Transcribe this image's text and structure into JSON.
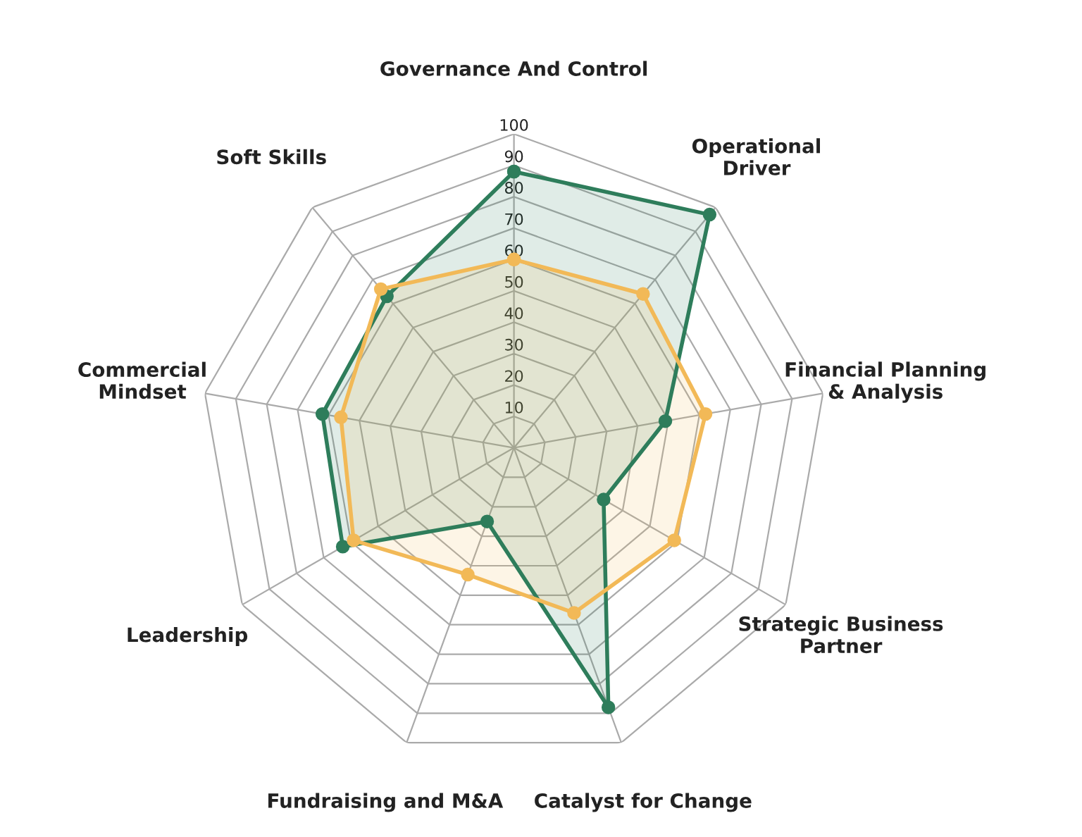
{
  "chart_data": {
    "type": "radar",
    "categories": [
      "Governance And Control",
      "Operational\nDriver",
      "Financial Planning\n& Analysis",
      "Strategic Business\nPartner",
      "Catalyst for Change",
      "Fundraising and M&A",
      "Leadership",
      "Commercial\nMindset",
      "Soft Skills"
    ],
    "series": [
      {
        "color": "#2e7d5b",
        "values": [
          88,
          97,
          49,
          33,
          88,
          25,
          63,
          62,
          63
        ]
      },
      {
        "color": "#f2b957",
        "values": [
          60,
          64,
          62,
          59,
          56,
          43,
          59,
          56,
          66
        ]
      }
    ],
    "ylim": [
      0,
      100
    ],
    "yticks": [
      10,
      20,
      30,
      40,
      50,
      60,
      70,
      80,
      90,
      100
    ],
    "grid": true,
    "marker": "circle",
    "line_style": "solid"
  }
}
